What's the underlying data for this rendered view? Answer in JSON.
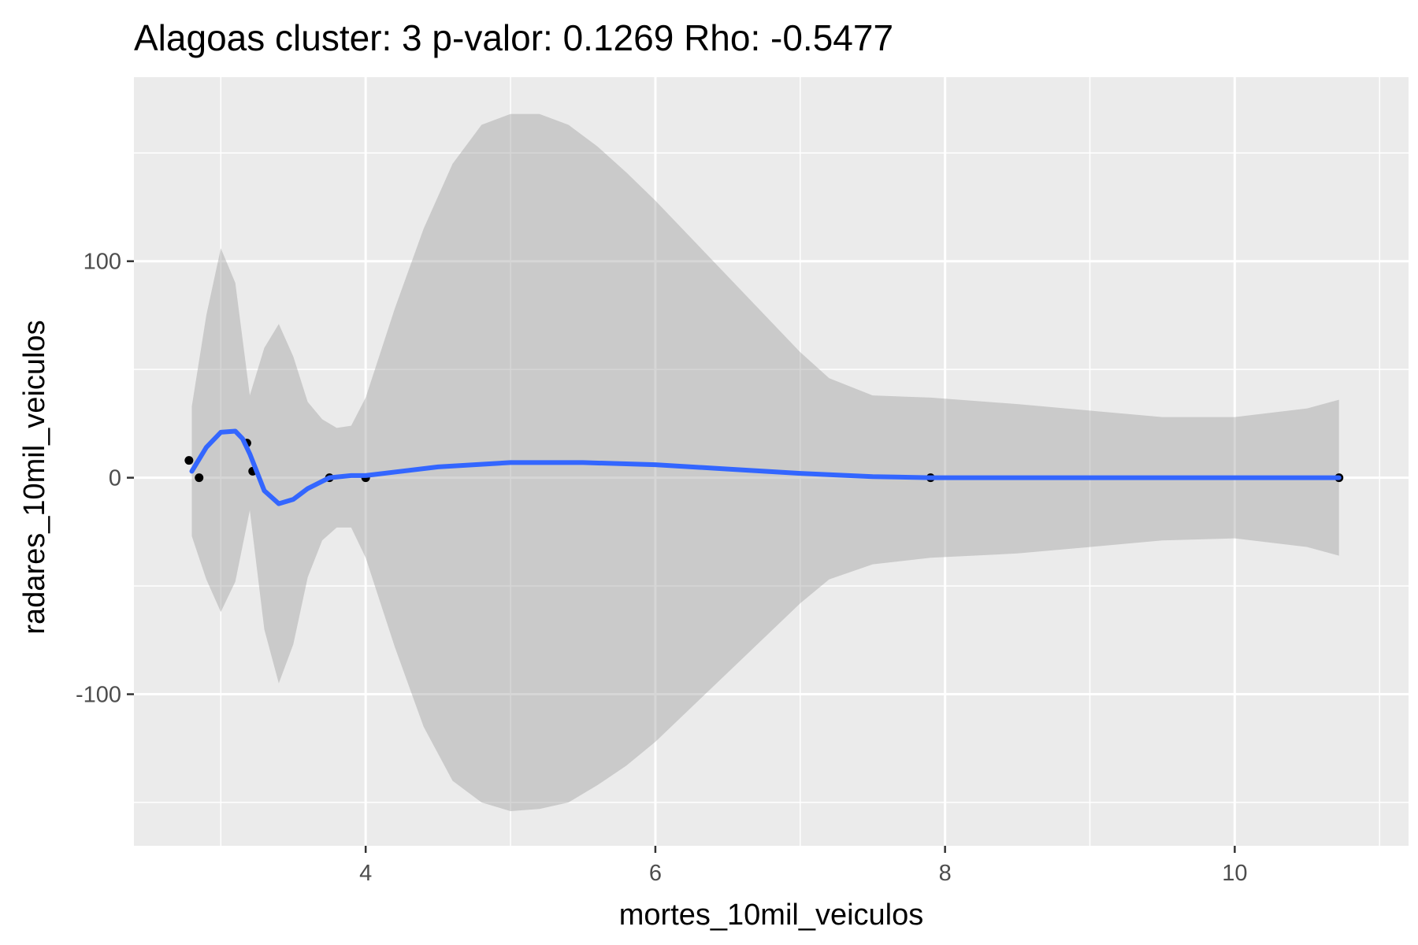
{
  "chart_data": {
    "type": "scatter",
    "title": "Alagoas cluster: 3 p-valor: 0.1269 Rho: -0.5477",
    "xlabel": "mortes_10mil_veiculos",
    "ylabel": "radares_10mil_veiculos",
    "xlim": [
      2.4,
      11.2
    ],
    "ylim": [
      -170,
      185
    ],
    "x_ticks": [
      4,
      6,
      8,
      10
    ],
    "x_tick_labels": [
      "4",
      "6",
      "8",
      "10"
    ],
    "x_minor_ticks": [
      3,
      5,
      7,
      9,
      11
    ],
    "y_ticks": [
      -100,
      0,
      100
    ],
    "y_tick_labels": [
      "-100",
      "0",
      "100"
    ],
    "y_minor_ticks": [
      -150,
      -50,
      50,
      150
    ],
    "grid": true,
    "background": "#ebebeb",
    "points_color": "#000000",
    "smooth_color": "#3366ff",
    "band_color": "#999999",
    "points": [
      {
        "x": 2.78,
        "y": 8
      },
      {
        "x": 2.85,
        "y": 0
      },
      {
        "x": 3.18,
        "y": 16
      },
      {
        "x": 3.22,
        "y": 3
      },
      {
        "x": 3.75,
        "y": 0
      },
      {
        "x": 4.0,
        "y": 0
      },
      {
        "x": 7.9,
        "y": 0
      },
      {
        "x": 10.72,
        "y": 0
      }
    ],
    "smooth": {
      "x": [
        2.8,
        2.9,
        3.0,
        3.1,
        3.15,
        3.2,
        3.3,
        3.4,
        3.5,
        3.6,
        3.75,
        3.9,
        4.0,
        4.5,
        5.0,
        5.5,
        6.0,
        6.5,
        7.0,
        7.5,
        7.9,
        8.5,
        9.0,
        9.5,
        10.0,
        10.5,
        10.72
      ],
      "y": [
        3,
        14,
        21,
        21.5,
        18,
        11,
        -6,
        -12,
        -10,
        -5,
        0,
        1,
        1,
        5,
        7,
        7,
        6,
        4,
        2,
        0.5,
        0,
        0,
        0,
        0,
        0,
        0,
        0
      ]
    },
    "band": {
      "x": [
        2.8,
        2.9,
        3.0,
        3.1,
        3.2,
        3.3,
        3.4,
        3.5,
        3.6,
        3.7,
        3.8,
        3.9,
        4.0,
        4.2,
        4.4,
        4.6,
        4.8,
        5.0,
        5.2,
        5.4,
        5.6,
        5.8,
        6.0,
        6.5,
        7.0,
        7.2,
        7.5,
        7.9,
        8.5,
        9.0,
        9.5,
        10.0,
        10.5,
        10.72
      ],
      "upper": [
        33,
        75,
        106,
        90,
        38,
        60,
        71,
        56,
        35,
        27,
        23,
        24,
        37,
        78,
        115,
        145,
        163,
        168,
        168,
        163,
        153,
        141,
        128,
        93,
        58,
        46,
        38,
        37,
        34,
        31,
        28,
        28,
        32,
        36
      ],
      "lower": [
        -27,
        -47,
        -62,
        -48,
        -15,
        -70,
        -95,
        -77,
        -46,
        -29,
        -23,
        -23,
        -37,
        -78,
        -115,
        -140,
        -150,
        -154,
        -153,
        -150,
        -142,
        -133,
        -122,
        -90,
        -58,
        -47,
        -40,
        -37,
        -35,
        -32,
        -29,
        -28,
        -32,
        -36
      ]
    }
  }
}
